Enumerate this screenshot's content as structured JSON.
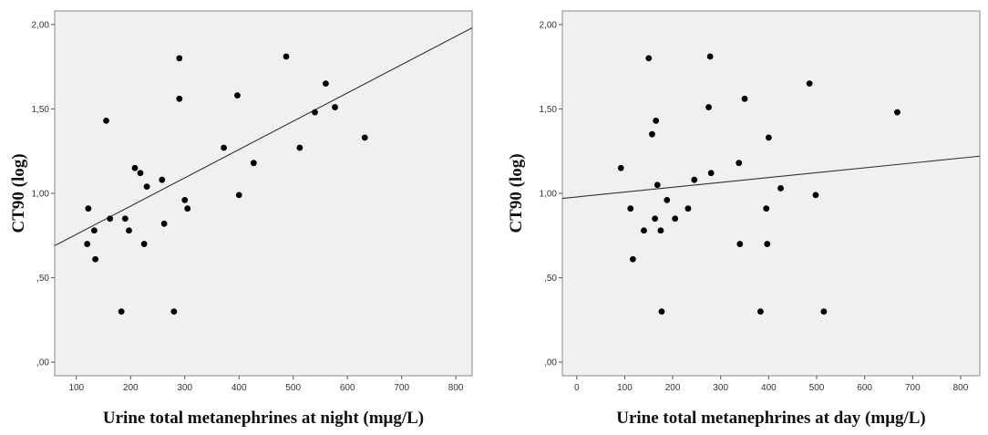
{
  "chart_data": [
    {
      "type": "scatter",
      "title": "",
      "xlabel": "Urine total metanephrines at night (mμg/L)",
      "ylabel": "CT90 (log)",
      "xlim": [
        60,
        830
      ],
      "ylim": [
        -0.08,
        2.08
      ],
      "x_ticks": [
        100,
        200,
        300,
        400,
        500,
        600,
        700,
        800
      ],
      "x_tick_labels": [
        "100",
        "200",
        "300",
        "400",
        "500",
        "600",
        "700",
        "800"
      ],
      "y_ticks": [
        0,
        0.5,
        1.0,
        1.5,
        2.0
      ],
      "y_tick_labels": [
        ",00",
        ",50",
        "1,00",
        "1,50",
        "2,00"
      ],
      "grid": false,
      "fit_line": [
        [
          60,
          0.69
        ],
        [
          830,
          1.98
        ]
      ],
      "colors": {
        "plot_bg": "#f0f0f0",
        "point": "#000000",
        "line": "#333333"
      },
      "points": [
        {
          "x": 122,
          "y": 0.91
        },
        {
          "x": 120,
          "y": 0.7
        },
        {
          "x": 133,
          "y": 0.78
        },
        {
          "x": 135,
          "y": 0.61
        },
        {
          "x": 155,
          "y": 1.43
        },
        {
          "x": 162,
          "y": 0.85
        },
        {
          "x": 183,
          "y": 0.3
        },
        {
          "x": 190,
          "y": 0.85
        },
        {
          "x": 197,
          "y": 0.78
        },
        {
          "x": 208,
          "y": 1.15
        },
        {
          "x": 218,
          "y": 1.12
        },
        {
          "x": 225,
          "y": 0.7
        },
        {
          "x": 230,
          "y": 1.04
        },
        {
          "x": 258,
          "y": 1.08
        },
        {
          "x": 262,
          "y": 0.82
        },
        {
          "x": 280,
          "y": 0.3
        },
        {
          "x": 290,
          "y": 1.8
        },
        {
          "x": 290,
          "y": 1.56
        },
        {
          "x": 300,
          "y": 0.96
        },
        {
          "x": 305,
          "y": 0.91
        },
        {
          "x": 372,
          "y": 1.27
        },
        {
          "x": 397,
          "y": 1.58
        },
        {
          "x": 400,
          "y": 0.99
        },
        {
          "x": 427,
          "y": 1.18
        },
        {
          "x": 487,
          "y": 1.81
        },
        {
          "x": 512,
          "y": 1.27
        },
        {
          "x": 540,
          "y": 1.48
        },
        {
          "x": 560,
          "y": 1.65
        },
        {
          "x": 577,
          "y": 1.51
        },
        {
          "x": 632,
          "y": 1.33
        }
      ]
    },
    {
      "type": "scatter",
      "title": "",
      "xlabel": "Urine total metanephrines at day (mμg/L)",
      "ylabel": "CT90 (log)",
      "xlim": [
        -30,
        840
      ],
      "ylim": [
        -0.08,
        2.08
      ],
      "x_ticks": [
        0,
        100,
        200,
        300,
        400,
        500,
        600,
        700,
        800
      ],
      "x_tick_labels": [
        "0",
        "100",
        "200",
        "300",
        "400",
        "500",
        "600",
        "700",
        "800"
      ],
      "y_ticks": [
        0,
        0.5,
        1.0,
        1.5,
        2.0
      ],
      "y_tick_labels": [
        ",00",
        ",50",
        "1,00",
        "1,50",
        "2,00"
      ],
      "grid": false,
      "fit_line": [
        [
          -30,
          0.97
        ],
        [
          840,
          1.22
        ]
      ],
      "colors": {
        "plot_bg": "#f0f0f0",
        "point": "#000000",
        "line": "#333333"
      },
      "points": [
        {
          "x": 92,
          "y": 1.15
        },
        {
          "x": 112,
          "y": 0.91
        },
        {
          "x": 117,
          "y": 0.61
        },
        {
          "x": 140,
          "y": 0.78
        },
        {
          "x": 150,
          "y": 1.8
        },
        {
          "x": 157,
          "y": 1.35
        },
        {
          "x": 163,
          "y": 0.85
        },
        {
          "x": 165,
          "y": 1.43
        },
        {
          "x": 168,
          "y": 1.05
        },
        {
          "x": 175,
          "y": 0.78
        },
        {
          "x": 177,
          "y": 0.3
        },
        {
          "x": 188,
          "y": 0.96
        },
        {
          "x": 205,
          "y": 0.85
        },
        {
          "x": 232,
          "y": 0.91
        },
        {
          "x": 245,
          "y": 1.08
        },
        {
          "x": 275,
          "y": 1.51
        },
        {
          "x": 278,
          "y": 1.81
        },
        {
          "x": 280,
          "y": 1.12
        },
        {
          "x": 338,
          "y": 1.18
        },
        {
          "x": 340,
          "y": 0.7
        },
        {
          "x": 350,
          "y": 1.56
        },
        {
          "x": 383,
          "y": 0.3
        },
        {
          "x": 395,
          "y": 0.91
        },
        {
          "x": 397,
          "y": 0.7
        },
        {
          "x": 400,
          "y": 1.33
        },
        {
          "x": 425,
          "y": 1.03
        },
        {
          "x": 485,
          "y": 1.65
        },
        {
          "x": 498,
          "y": 0.99
        },
        {
          "x": 515,
          "y": 0.3
        },
        {
          "x": 668,
          "y": 1.48
        }
      ]
    }
  ]
}
